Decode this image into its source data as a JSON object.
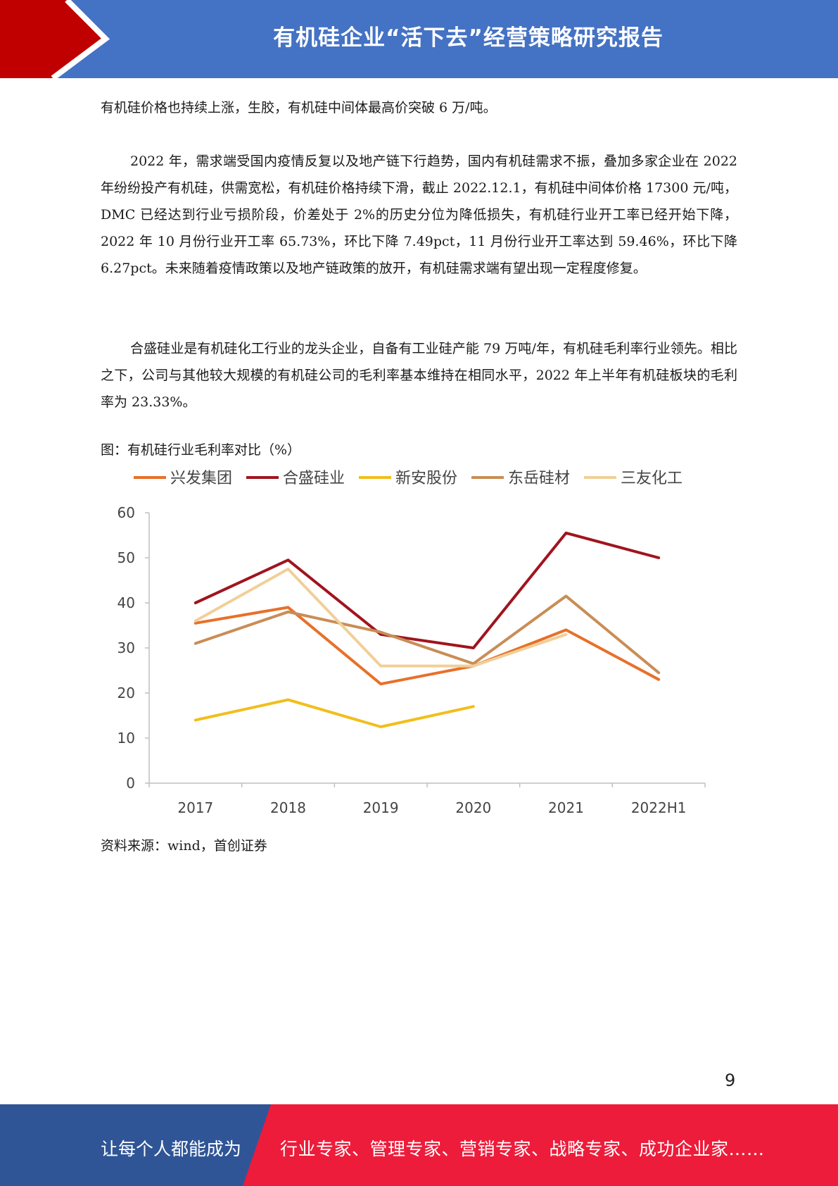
{
  "header": {
    "title": "有机硅企业“活下去”经营策略研究报告"
  },
  "paragraphs": [
    "有机硅价格也持续上涨，生胶，有机硅中间体最高价突破 6 万/吨。",
    "2022 年，需求端受国内疫情反复以及地产链下行趋势，国内有机硅需求不振，叠加多家企业在 2022 年纷纷投产有机硅，供需宽松，有机硅价格持续下滑，截止 2022.12.1，有机硅中间体价格 17300 元/吨，DMC 已经达到行业亏损阶段，价差处于 2%的历史分位为降低损失，有机硅行业开工率已经开始下降，2022 年 10 月份行业开工率 65.73%，环比下降 7.49pct，11 月份行业开工率达到 59.46%，环比下降 6.27pct。未来随着疫情政策以及地产链政策的放开，有机硅需求端有望出现一定程度修复。",
    "合盛硅业是有机硅化工行业的龙头企业，自备有工业硅产能 79 万吨/年，有机硅毛利率行业领先。相比之下，公司与其他较大规模的有机硅公司的毛利率基本维持在相同水平，2022 年上半年有机硅板块的毛利率为 23.33%。"
  ],
  "figure": {
    "caption": "图：有机硅行业毛利率对比（%）",
    "source": "资料来源：wind，首创证券"
  },
  "chart_data": {
    "type": "line",
    "categories": [
      "2017",
      "2018",
      "2019",
      "2020",
      "2021",
      "2022H1"
    ],
    "ylim": [
      0,
      60
    ],
    "yticks": [
      "0",
      "10",
      "20",
      "30",
      "40",
      "50",
      "60"
    ],
    "legend_position": "top",
    "grid": false,
    "series": [
      {
        "name": "兴发集团",
        "color": "#e8702a",
        "values": [
          35.5,
          39,
          22,
          26,
          34,
          23
        ]
      },
      {
        "name": "合盛硅业",
        "color": "#a0141e",
        "values": [
          40,
          49.5,
          33,
          30,
          55.5,
          50
        ]
      },
      {
        "name": "新安股份",
        "color": "#f2be1c",
        "values": [
          14,
          18.5,
          12.5,
          17,
          null,
          null
        ]
      },
      {
        "name": "东岳硅材",
        "color": "#c98d56",
        "values": [
          31,
          38,
          33.5,
          26.5,
          41.5,
          24.5
        ]
      },
      {
        "name": "三友化工",
        "color": "#f1cf98",
        "values": [
          36,
          47.5,
          26,
          26,
          33,
          null
        ]
      }
    ]
  },
  "page_number": "9",
  "footer": {
    "left_text": "让每个人都能成为",
    "right_text": "行业专家、管理专家、营销专家、战略专家、成功企业家……",
    "colors": {
      "blue": "#2f5597",
      "red": "#ed1c3a"
    }
  },
  "colors": {
    "header_blue": "#4472c4",
    "header_red": "#c00000"
  }
}
